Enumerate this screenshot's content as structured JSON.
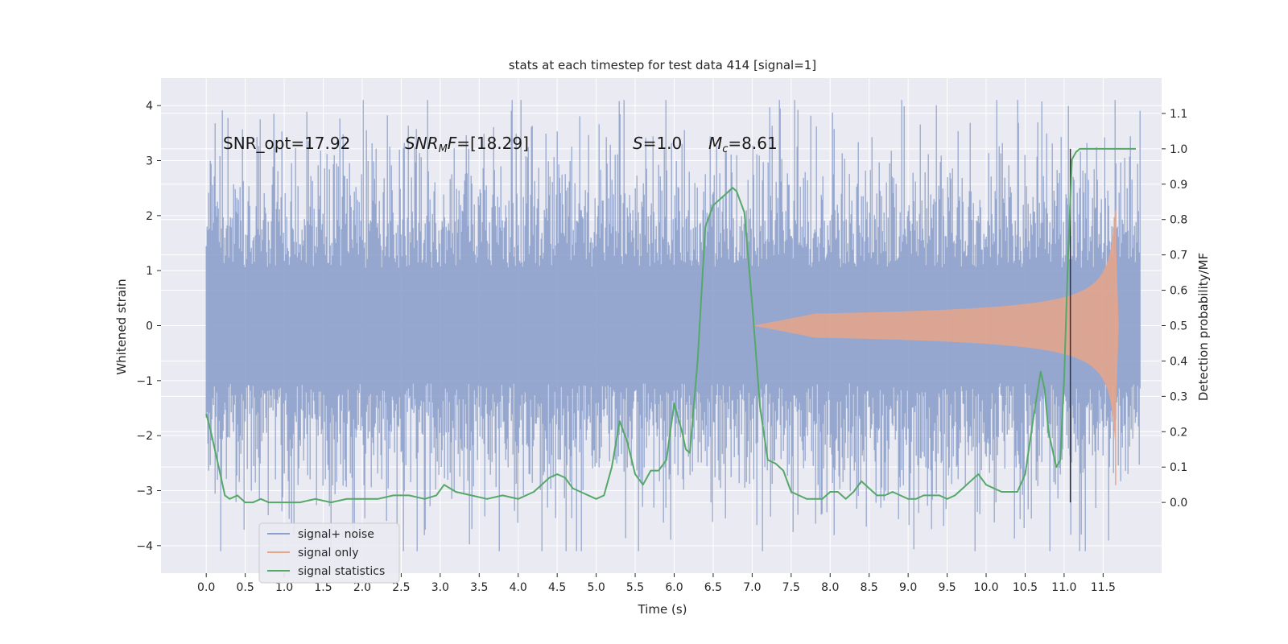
{
  "chart_data": {
    "type": "line",
    "title": "stats at each timestep for test data 414 [signal=1]",
    "xlabel": "Time (s)",
    "ylabel": "Whitened strain",
    "y2label": "Detection probability/MF",
    "xlim": [
      -0.58,
      12.25
    ],
    "ylim": [
      -4.5,
      4.5
    ],
    "y2lim": [
      -0.2,
      1.2
    ],
    "x_ticks": [
      0.0,
      0.5,
      1.0,
      1.5,
      2.0,
      2.5,
      3.0,
      3.5,
      4.0,
      4.5,
      5.0,
      5.5,
      6.0,
      6.5,
      7.0,
      7.5,
      8.0,
      8.5,
      9.0,
      9.5,
      10.0,
      10.5,
      11.0,
      11.5
    ],
    "x_tick_labels": [
      "0.0",
      "0.5",
      "1.0",
      "1.5",
      "2.0",
      "2.5",
      "3.0",
      "3.5",
      "4.0",
      "4.5",
      "5.0",
      "5.5",
      "6.0",
      "6.5",
      "7.0",
      "7.5",
      "8.0",
      "8.5",
      "9.0",
      "9.5",
      "10.0",
      "10.5",
      "11.0",
      "11.5"
    ],
    "y_ticks": [
      -4,
      -3,
      -2,
      -1,
      0,
      1,
      2,
      3,
      4
    ],
    "y_tick_labels": [
      "−4",
      "−3",
      "−2",
      "−1",
      "0",
      "1",
      "2",
      "3",
      "4"
    ],
    "y2_ticks": [
      0.0,
      0.1,
      0.2,
      0.3,
      0.4,
      0.5,
      0.6,
      0.7,
      0.8,
      0.9,
      1.0,
      1.1
    ],
    "y2_tick_labels": [
      "0.0",
      "0.1",
      "0.2",
      "0.3",
      "0.4",
      "0.5",
      "0.6",
      "0.7",
      "0.8",
      "0.9",
      "1.0",
      "1.1"
    ],
    "grid": true,
    "legend_position": "lower-left",
    "annotations": {
      "snr_opt": "SNR_opt=17.92",
      "snr_mf_sym": "SNR",
      "snr_mf_sub": "M",
      "snr_mf_sym2": "F",
      "snr_mf_val": "=[18.29]",
      "s_sym": "S",
      "s_val": "=1.0",
      "mc_sym": "M",
      "mc_sub": "c",
      "mc_val": "=8.61"
    },
    "threshold_line_time": 11.08,
    "colors": {
      "noise": "#8da0cb",
      "signal": "#e8a58a",
      "stats": "#55a868",
      "vline": "#333333",
      "plot_bg": "#eaeaf2",
      "grid": "#ffffff"
    },
    "series": [
      {
        "name": "signal+ noise",
        "x_range": [
          0.0,
          11.98
        ],
        "envelope_sigma": 1.3,
        "peak_range": [
          -4.1,
          4.1
        ]
      },
      {
        "name": "signal only",
        "chirp": {
          "start": 7.0,
          "peak_time": 11.65,
          "end": 11.7,
          "max_amplitude": 2.1
        }
      },
      {
        "name": "signal statistics",
        "axis": "y2",
        "x": [
          0.0,
          0.06,
          0.12,
          0.18,
          0.24,
          0.3,
          0.4,
          0.5,
          0.6,
          0.7,
          0.8,
          0.9,
          1.0,
          1.2,
          1.4,
          1.6,
          1.8,
          2.0,
          2.2,
          2.4,
          2.6,
          2.8,
          2.95,
          3.05,
          3.2,
          3.4,
          3.6,
          3.8,
          4.0,
          4.2,
          4.3,
          4.4,
          4.5,
          4.6,
          4.7,
          4.8,
          5.0,
          5.1,
          5.2,
          5.3,
          5.4,
          5.5,
          5.6,
          5.7,
          5.8,
          5.9,
          6.0,
          6.1,
          6.15,
          6.2,
          6.3,
          6.4,
          6.5,
          6.6,
          6.7,
          6.75,
          6.8,
          6.9,
          7.0,
          7.1,
          7.2,
          7.3,
          7.4,
          7.5,
          7.6,
          7.7,
          7.8,
          7.9,
          8.0,
          8.1,
          8.2,
          8.3,
          8.4,
          8.5,
          8.6,
          8.7,
          8.8,
          8.9,
          9.0,
          9.1,
          9.2,
          9.3,
          9.4,
          9.5,
          9.6,
          9.7,
          9.8,
          9.9,
          10.0,
          10.1,
          10.2,
          10.3,
          10.4,
          10.5,
          10.6,
          10.7,
          10.75,
          10.8,
          10.9,
          10.95,
          11.0,
          11.05,
          11.1,
          11.15,
          11.2,
          11.3,
          11.5,
          11.7,
          11.92
        ],
        "y": [
          0.25,
          0.2,
          0.14,
          0.08,
          0.02,
          0.01,
          0.02,
          0.0,
          0.0,
          0.01,
          0.0,
          0.0,
          0.0,
          0.0,
          0.01,
          0.0,
          0.01,
          0.01,
          0.01,
          0.02,
          0.02,
          0.01,
          0.02,
          0.05,
          0.03,
          0.02,
          0.01,
          0.02,
          0.01,
          0.03,
          0.05,
          0.07,
          0.08,
          0.07,
          0.04,
          0.03,
          0.01,
          0.02,
          0.1,
          0.23,
          0.17,
          0.08,
          0.05,
          0.09,
          0.09,
          0.12,
          0.28,
          0.2,
          0.15,
          0.14,
          0.4,
          0.78,
          0.84,
          0.86,
          0.88,
          0.89,
          0.88,
          0.82,
          0.56,
          0.27,
          0.12,
          0.11,
          0.09,
          0.03,
          0.02,
          0.01,
          0.01,
          0.01,
          0.03,
          0.03,
          0.01,
          0.03,
          0.06,
          0.04,
          0.02,
          0.02,
          0.03,
          0.02,
          0.01,
          0.01,
          0.02,
          0.02,
          0.02,
          0.01,
          0.02,
          0.04,
          0.06,
          0.08,
          0.05,
          0.04,
          0.03,
          0.03,
          0.03,
          0.08,
          0.23,
          0.37,
          0.32,
          0.2,
          0.1,
          0.12,
          0.35,
          0.69,
          0.97,
          0.99,
          1.0,
          1.0,
          1.0,
          1.0,
          1.0
        ]
      }
    ]
  }
}
